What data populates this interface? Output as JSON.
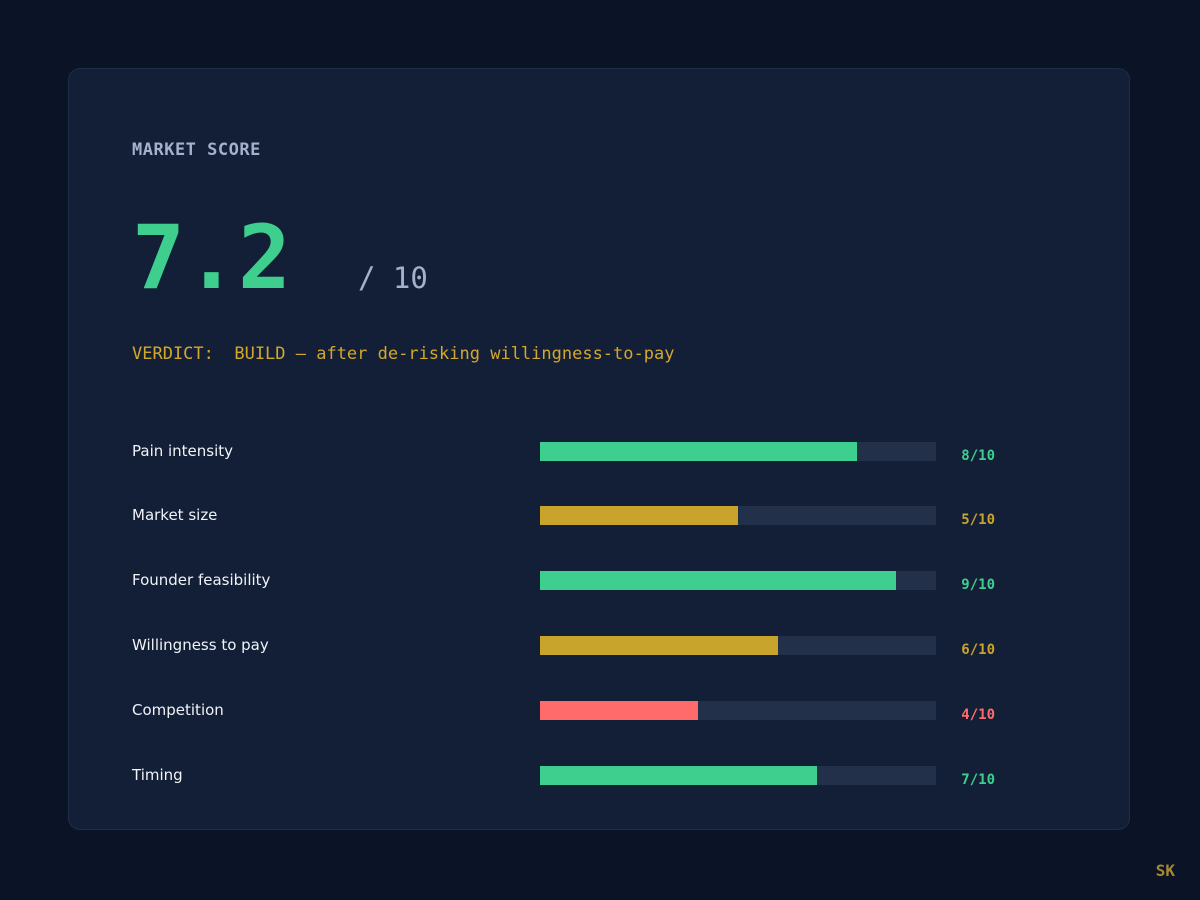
{
  "header": {
    "eyebrow": "MARKET SCORE",
    "score": "7.2",
    "score_max": "/ 10",
    "verdict": "VERDICT:  BUILD — after de-risking willingness-to-pay"
  },
  "colors": {
    "high": "#3ecf8e",
    "medium": "#c9a42c",
    "low": "#ff6b6b"
  },
  "chart_data": {
    "type": "bar",
    "orientation": "horizontal",
    "categories": [
      "Pain intensity",
      "Market size",
      "Founder feasibility",
      "Willingness to pay",
      "Competition",
      "Timing"
    ],
    "values": [
      8,
      5,
      9,
      6,
      4,
      7
    ],
    "value_labels": [
      "8/10",
      "5/10",
      "9/10",
      "6/10",
      "4/10",
      "7/10"
    ],
    "bar_colors": [
      "#3ecf8e",
      "#c9a42c",
      "#3ecf8e",
      "#c9a42c",
      "#ff6b6b",
      "#3ecf8e"
    ],
    "xlim": [
      0,
      10
    ]
  },
  "footer": {
    "badge": "SK"
  }
}
